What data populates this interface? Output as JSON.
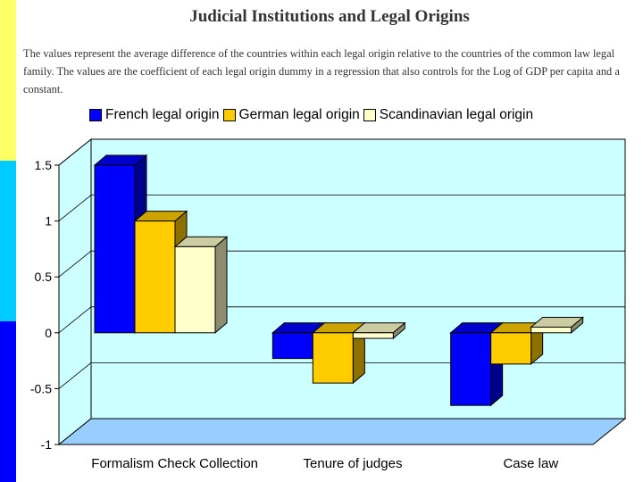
{
  "title": "Judicial Institutions and Legal Origins",
  "subtitle": "The values represent the average difference of the countries within each legal origin relative to the countries of the common law legal family.  The values are the coefficient of each legal origin dummy in a regression that also controls for the Log of GDP per capita and a constant.",
  "colors": {
    "strip_top": "#ffff66",
    "strip_middle": "#00ccff",
    "strip_bottom": "#0000ff",
    "plot_back": "#ccffff",
    "plot_floor": "#99ccff"
  },
  "chart_data": {
    "type": "bar",
    "categories": [
      "Formalism Check Collection",
      "Tenure of judges",
      "Case law"
    ],
    "series": [
      {
        "name": "French legal origin",
        "values": [
          1.5,
          -0.23,
          -0.65
        ],
        "color": "#0000ff"
      },
      {
        "name": "German legal origin",
        "values": [
          1.0,
          -0.45,
          -0.28
        ],
        "color": "#ffcc00"
      },
      {
        "name": "Scandinavian legal origin",
        "values": [
          0.77,
          -0.05,
          0.05
        ],
        "color": "#ffffcc"
      }
    ],
    "ylim": [
      -1,
      1.5
    ],
    "yticks": [
      "1.5",
      "1",
      "0.5",
      "0",
      "-0.5",
      "-1"
    ],
    "ytick_values": [
      1.5,
      1,
      0.5,
      0,
      -0.5,
      -1
    ],
    "grid": true,
    "legend_position": "top"
  }
}
